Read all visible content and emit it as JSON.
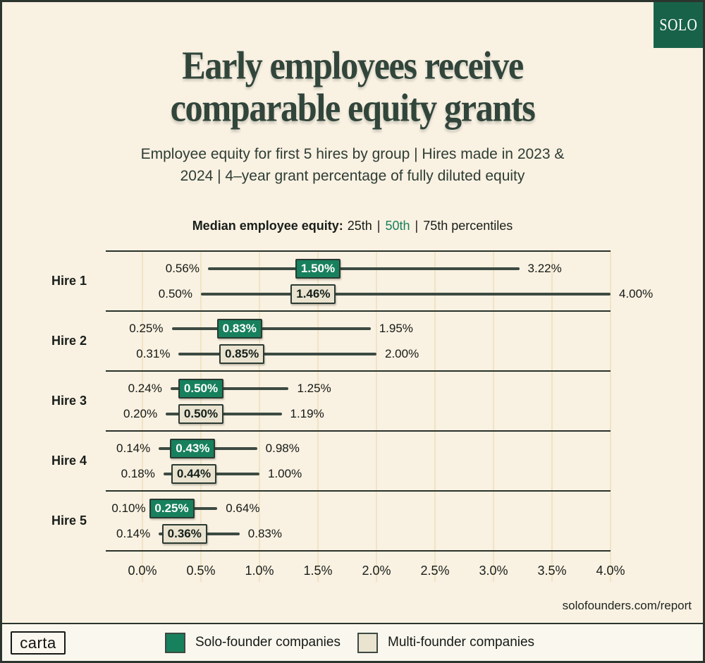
{
  "logo": {
    "label": "SOLO"
  },
  "header": {
    "title_line1": "Early employees receive",
    "title_line2": "comparable equity grants",
    "subtitle_line1": "Employee equity for first 5 hires by group | Hires made in 2023 &",
    "subtitle_line2": "2024 | 4–year grant percentage of fully diluted equity"
  },
  "percentile_note": {
    "lead": "Median employee equity:",
    "p25": "25th",
    "divider": "|",
    "p50": "50th",
    "p75": "75th percentiles"
  },
  "chart_data": {
    "type": "percentile_range",
    "unit": "percent of fully diluted equity",
    "xlim": [
      0,
      4
    ],
    "x_ticks": [
      0,
      0.5,
      1,
      1.5,
      2,
      2.5,
      3,
      3.5,
      4
    ],
    "x_tick_labels": [
      "0.0%",
      "0.5%",
      "1.0%",
      "1.5%",
      "2.0%",
      "2.5%",
      "3.0%",
      "3.5%",
      "4.0%"
    ],
    "series_names": [
      "Solo-founder companies",
      "Multi-founder companies"
    ],
    "groups": [
      {
        "label": "Hire 1",
        "series": [
          {
            "name": "Solo-founder companies",
            "p25": 0.56,
            "p50": 1.5,
            "p75": 3.22
          },
          {
            "name": "Multi-founder companies",
            "p25": 0.5,
            "p50": 1.46,
            "p75": 4.0
          }
        ]
      },
      {
        "label": "Hire 2",
        "series": [
          {
            "name": "Solo-founder companies",
            "p25": 0.25,
            "p50": 0.83,
            "p75": 1.95
          },
          {
            "name": "Multi-founder companies",
            "p25": 0.31,
            "p50": 0.85,
            "p75": 2.0
          }
        ]
      },
      {
        "label": "Hire 3",
        "series": [
          {
            "name": "Solo-founder companies",
            "p25": 0.24,
            "p50": 0.5,
            "p75": 1.25
          },
          {
            "name": "Multi-founder companies",
            "p25": 0.2,
            "p50": 0.5,
            "p75": 1.19
          }
        ]
      },
      {
        "label": "Hire 4",
        "series": [
          {
            "name": "Solo-founder companies",
            "p25": 0.14,
            "p50": 0.43,
            "p75": 0.98
          },
          {
            "name": "Multi-founder companies",
            "p25": 0.18,
            "p50": 0.44,
            "p75": 1.0
          }
        ]
      },
      {
        "label": "Hire 5",
        "series": [
          {
            "name": "Solo-founder companies",
            "p25": 0.1,
            "p50": 0.25,
            "p75": 0.64
          },
          {
            "name": "Multi-founder companies",
            "p25": 0.14,
            "p50": 0.36,
            "p75": 0.83
          }
        ]
      }
    ],
    "title": "Early employees receive comparable equity grants",
    "legend_position": "bottom"
  },
  "footer": {
    "source_url": "solofounders.com/report",
    "carta_logo": "carta",
    "legend": [
      {
        "label": "Solo-founder companies",
        "color": "#17805d"
      },
      {
        "label": "Multi-founder companies",
        "color": "#e9e3d0"
      }
    ]
  },
  "colors": {
    "background": "#f9f1e2",
    "footer_bg": "#faf7ee",
    "frame": "#2b352e",
    "dark_green": "#31453b",
    "accent_green": "#17805d",
    "logo_green": "#186249",
    "beige": "#e9e3d0",
    "gridline": "#f1e4c3",
    "line": "#3c4a42",
    "text": "#191e1a"
  }
}
